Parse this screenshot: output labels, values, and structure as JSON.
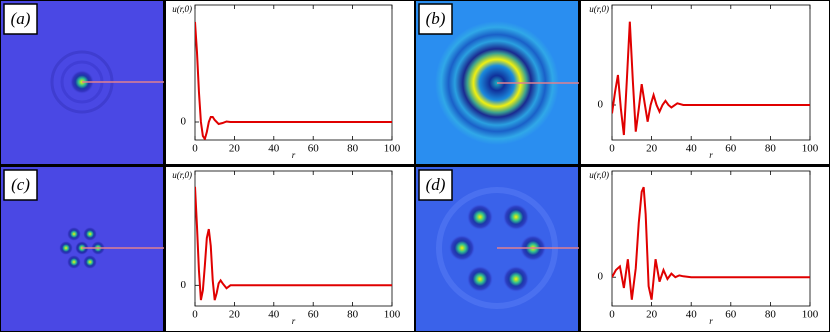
{
  "chart_data": [
    {
      "type": "line",
      "panel_label": "(a)",
      "ylabel": "u(r,0)",
      "xlabel": "r",
      "color": "#e00000",
      "x": [
        0,
        1,
        2,
        3,
        4,
        5,
        6,
        7,
        8,
        9,
        10,
        12,
        14,
        16,
        18,
        20,
        30,
        40,
        60,
        80,
        100
      ],
      "values": [
        1.0,
        0.7,
        0.3,
        0.0,
        -0.14,
        -0.17,
        -0.1,
        0.0,
        0.05,
        0.05,
        0.02,
        -0.02,
        -0.01,
        0.005,
        0,
        0,
        0,
        0,
        0,
        0,
        0
      ],
      "xlim": [
        0,
        100
      ],
      "xticks": [
        0,
        20,
        40,
        60,
        80,
        100
      ],
      "ylim": [
        -0.18,
        1.17
      ],
      "yticks": [
        0
      ]
    },
    {
      "type": "line",
      "panel_label": "(b)",
      "ylabel": "u(r,0)",
      "xlabel": "r",
      "color": "#e00000",
      "x": [
        0,
        1.5,
        3,
        4.5,
        6,
        7.5,
        9,
        10.5,
        12,
        13.5,
        15,
        16.5,
        18,
        19.5,
        21,
        22.5,
        24,
        25.5,
        27,
        28.5,
        30,
        33,
        36,
        40,
        60,
        80,
        100
      ],
      "values": [
        -0.1,
        0.15,
        0.36,
        -0.05,
        -0.36,
        0.3,
        1.0,
        0.3,
        -0.32,
        -0.05,
        0.25,
        0.02,
        -0.2,
        0.0,
        0.12,
        0.0,
        -0.08,
        0.0,
        0.05,
        0.0,
        -0.03,
        0.02,
        0,
        0,
        0,
        0,
        0
      ],
      "xlim": [
        0,
        100
      ],
      "xticks": [
        0,
        20,
        40,
        60,
        80,
        100
      ],
      "ylim": [
        -0.42,
        1.2
      ],
      "yticks": [
        0
      ]
    },
    {
      "type": "line",
      "panel_label": "(c)",
      "ylabel": "u(r,0)",
      "xlabel": "r",
      "color": "#e00000",
      "x": [
        0,
        1,
        2,
        3,
        4,
        5,
        6,
        7,
        8,
        9,
        10,
        11,
        12,
        13,
        14,
        16,
        18,
        20,
        30,
        40,
        60,
        80,
        100
      ],
      "values": [
        1.0,
        0.6,
        0.15,
        -0.15,
        -0.05,
        0.2,
        0.48,
        0.57,
        0.4,
        0.05,
        -0.15,
        -0.08,
        0.02,
        0.05,
        0.02,
        -0.03,
        0,
        0,
        0,
        0,
        0,
        0,
        0
      ],
      "xlim": [
        0,
        100
      ],
      "xticks": [
        0,
        20,
        40,
        60,
        80,
        100
      ],
      "ylim": [
        -0.21,
        1.16
      ],
      "yticks": [
        0
      ]
    },
    {
      "type": "line",
      "panel_label": "(d)",
      "ylabel": "u(r,0)",
      "xlabel": "r",
      "color": "#e00000",
      "x": [
        0,
        2,
        4,
        6,
        8,
        10,
        12,
        13.5,
        15,
        16,
        17,
        18.5,
        20,
        22,
        24,
        26,
        28,
        30,
        32,
        34,
        36,
        40,
        60,
        80,
        100
      ],
      "values": [
        0,
        0.08,
        0.12,
        -0.12,
        0.2,
        -0.25,
        0.1,
        0.6,
        0.95,
        1.0,
        0.7,
        -0.1,
        -0.25,
        0.2,
        -0.05,
        0.08,
        -0.02,
        0.04,
        0.0,
        0.02,
        0.01,
        0,
        0,
        0,
        0
      ],
      "xlim": [
        0,
        100
      ],
      "xticks": [
        0,
        20,
        40,
        60,
        80,
        100
      ],
      "ylim": [
        -0.32,
        1.18
      ],
      "yticks": [
        0
      ]
    }
  ]
}
